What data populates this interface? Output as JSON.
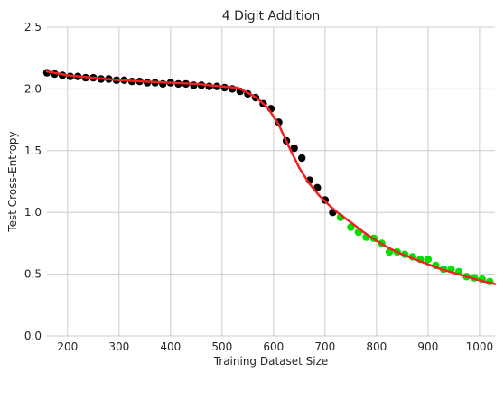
{
  "chart_data": {
    "type": "scatter",
    "title": "4 Digit Addition",
    "xlabel": "Training Dataset Size",
    "ylabel": "Test Cross-Entropy",
    "xlim": [
      160,
      1030
    ],
    "ylim": [
      0.0,
      2.5
    ],
    "xticks": [
      200,
      300,
      400,
      500,
      600,
      700,
      800,
      900,
      1000
    ],
    "yticks": [
      0.0,
      0.5,
      1.0,
      1.5,
      2.0,
      2.5
    ],
    "grid": true,
    "background": "#ffffff",
    "series": [
      {
        "color": "#000000",
        "style": "points",
        "points": [
          [
            160,
            2.13
          ],
          [
            175,
            2.12
          ],
          [
            190,
            2.11
          ],
          [
            205,
            2.1
          ],
          [
            220,
            2.1
          ],
          [
            235,
            2.09
          ],
          [
            250,
            2.09
          ],
          [
            265,
            2.08
          ],
          [
            280,
            2.08
          ],
          [
            295,
            2.07
          ],
          [
            310,
            2.07
          ],
          [
            325,
            2.06
          ],
          [
            340,
            2.06
          ],
          [
            355,
            2.05
          ],
          [
            370,
            2.05
          ],
          [
            385,
            2.04
          ],
          [
            400,
            2.05
          ],
          [
            415,
            2.04
          ],
          [
            430,
            2.04
          ],
          [
            445,
            2.03
          ],
          [
            460,
            2.03
          ],
          [
            475,
            2.02
          ],
          [
            490,
            2.02
          ],
          [
            505,
            2.01
          ],
          [
            520,
            2.0
          ],
          [
            535,
            1.98
          ],
          [
            550,
            1.96
          ],
          [
            565,
            1.93
          ],
          [
            580,
            1.88
          ],
          [
            595,
            1.84
          ],
          [
            610,
            1.73
          ],
          [
            625,
            1.58
          ],
          [
            640,
            1.52
          ],
          [
            655,
            1.44
          ],
          [
            670,
            1.26
          ],
          [
            685,
            1.2
          ],
          [
            700,
            1.1
          ],
          [
            715,
            1.0
          ]
        ]
      },
      {
        "color": "#00e000",
        "style": "points",
        "points": [
          [
            730,
            0.96
          ],
          [
            750,
            0.88
          ],
          [
            765,
            0.84
          ],
          [
            780,
            0.8
          ],
          [
            795,
            0.79
          ],
          [
            810,
            0.75
          ],
          [
            825,
            0.68
          ],
          [
            840,
            0.68
          ],
          [
            855,
            0.66
          ],
          [
            870,
            0.64
          ],
          [
            885,
            0.62
          ],
          [
            900,
            0.62
          ],
          [
            915,
            0.57
          ],
          [
            930,
            0.54
          ],
          [
            945,
            0.54
          ],
          [
            960,
            0.52
          ],
          [
            975,
            0.48
          ],
          [
            990,
            0.47
          ],
          [
            1005,
            0.46
          ],
          [
            1020,
            0.44
          ]
        ]
      },
      {
        "color": "#ee2222",
        "style": "line",
        "points": [
          [
            160,
            2.14
          ],
          [
            200,
            2.11
          ],
          [
            250,
            2.09
          ],
          [
            300,
            2.07
          ],
          [
            350,
            2.06
          ],
          [
            400,
            2.05
          ],
          [
            450,
            2.04
          ],
          [
            500,
            2.02
          ],
          [
            530,
            2.01
          ],
          [
            550,
            1.97
          ],
          [
            570,
            1.92
          ],
          [
            590,
            1.84
          ],
          [
            610,
            1.71
          ],
          [
            630,
            1.53
          ],
          [
            650,
            1.36
          ],
          [
            670,
            1.23
          ],
          [
            690,
            1.13
          ],
          [
            710,
            1.05
          ],
          [
            730,
            0.98
          ],
          [
            750,
            0.92
          ],
          [
            775,
            0.84
          ],
          [
            800,
            0.77
          ],
          [
            825,
            0.71
          ],
          [
            850,
            0.66
          ],
          [
            875,
            0.62
          ],
          [
            900,
            0.58
          ],
          [
            925,
            0.54
          ],
          [
            950,
            0.51
          ],
          [
            975,
            0.48
          ],
          [
            1000,
            0.45
          ],
          [
            1030,
            0.42
          ]
        ]
      }
    ]
  }
}
